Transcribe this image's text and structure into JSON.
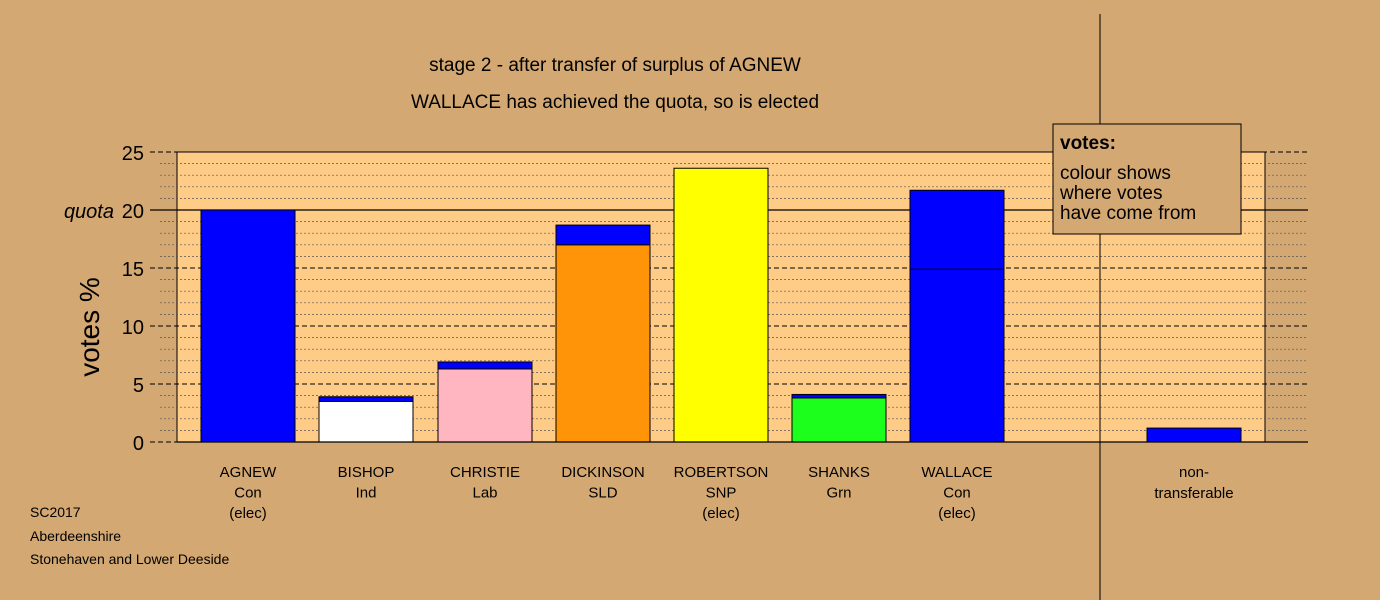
{
  "chart_data": {
    "type": "bar",
    "title": "stage 2 - after transfer of surplus of AGNEW",
    "subtitle": "WALLACE has achieved the quota, so is elected",
    "ylabel": "votes %",
    "ylim": [
      0,
      25
    ],
    "yticks": [
      0,
      5,
      10,
      15,
      20,
      25
    ],
    "quota": 20,
    "quota_label": "quota",
    "grid": true,
    "colors": {
      "background": "#d4a872",
      "plot_background": "#ffcc88",
      "con": "#0000ff",
      "ind": "#ffffff",
      "lab": "#ffb6c1",
      "sld": "#ff9408",
      "snp": "#ffff00",
      "grn": "#1cff1c"
    },
    "categories": [
      {
        "name": "AGNEW",
        "party": "Con",
        "status": "(elec)",
        "segments": [
          {
            "value": 20.0,
            "color": "#0000ff"
          }
        ]
      },
      {
        "name": "BISHOP",
        "party": "Ind",
        "status": "",
        "segments": [
          {
            "value": 3.5,
            "color": "#ffffff"
          },
          {
            "value": 0.4,
            "color": "#0000ff"
          }
        ]
      },
      {
        "name": "CHRISTIE",
        "party": "Lab",
        "status": "",
        "segments": [
          {
            "value": 6.3,
            "color": "#ffb6c1"
          },
          {
            "value": 0.6,
            "color": "#0000ff"
          }
        ]
      },
      {
        "name": "DICKINSON",
        "party": "SLD",
        "status": "",
        "segments": [
          {
            "value": 17.0,
            "color": "#ff9408"
          },
          {
            "value": 1.7,
            "color": "#0000ff"
          }
        ]
      },
      {
        "name": "ROBERTSON",
        "party": "SNP",
        "status": "(elec)",
        "segments": [
          {
            "value": 23.6,
            "color": "#ffff00"
          }
        ]
      },
      {
        "name": "SHANKS",
        "party": "Grn",
        "status": "",
        "segments": [
          {
            "value": 3.8,
            "color": "#1cff1c"
          },
          {
            "value": 0.3,
            "color": "#0000ff"
          }
        ]
      },
      {
        "name": "WALLACE",
        "party": "Con",
        "status": "(elec)",
        "segments": [
          {
            "value": 14.9,
            "color": "#0000ff"
          },
          {
            "value": 6.8,
            "color": "#0000ff"
          }
        ]
      }
    ],
    "non_transferable": {
      "label_line1": "non-",
      "label_line2": "transferable",
      "value": 1.2,
      "color": "#0000ff"
    },
    "legend": {
      "title": "votes:",
      "lines": [
        "colour shows",
        "where votes",
        "have come from"
      ],
      "placement": "top-right"
    },
    "footer": [
      "SC2017",
      "Aberdeenshire",
      "Stonehaven and Lower Deeside"
    ]
  }
}
